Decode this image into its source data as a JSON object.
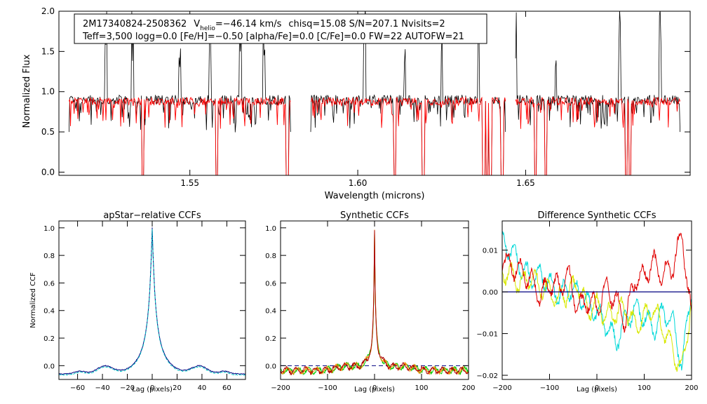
{
  "figure": {
    "info_line1": {
      "star": "2M17340824-2508362",
      "v_label": "V",
      "v_sub": "helio",
      "v_value": "=−46.14 km/s",
      "rest": "chisq=15.08  S/N=207.1  Nvisits=2"
    },
    "info_line2": "Teff=3,500 logg=0.0 [Fe/H]=−0.50 [alpha/Fe]=0.0 [C/Fe]=0.0 FW=22 AUTOFW=21"
  },
  "chart_data": [
    {
      "id": "spectrum",
      "type": "line",
      "title": "",
      "xlabel": "Wavelength (microns)",
      "ylabel": "Normalized Flux",
      "xlim": [
        1.511,
        1.699
      ],
      "ylim": [
        -0.04,
        2.0
      ],
      "xticks": [
        1.55,
        1.6,
        1.65
      ],
      "xtick_labels": [
        "1.55",
        "1.60",
        "1.65"
      ],
      "yticks": [
        0.0,
        0.5,
        1.0,
        1.5,
        2.0
      ],
      "ytick_labels": [
        "0.0",
        "0.5",
        "1.0",
        "1.5",
        "2.0"
      ],
      "chips": [
        [
          1.514,
          1.58
        ],
        [
          1.586,
          1.644
        ],
        [
          1.647,
          1.696
        ]
      ],
      "sky_lines_down": [
        1.536,
        1.558,
        1.579,
        1.611,
        1.6195,
        1.6375,
        1.6385,
        1.6395,
        1.643,
        1.653,
        1.656,
        1.68,
        1.681
      ],
      "sky_lines_up": [
        1.525,
        1.533,
        1.547,
        1.556,
        1.565,
        1.572,
        1.602,
        1.614,
        1.625,
        1.636,
        1.647,
        1.659,
        1.678,
        1.69
      ],
      "series": [
        {
          "name": "observed spectrum",
          "color": "#000000",
          "continuum": 0.9,
          "noise": 0.06
        },
        {
          "name": "best-fit synthetic",
          "color": "#ff0000",
          "continuum": 0.88,
          "noise": 0.05
        }
      ]
    },
    {
      "id": "ccf_apstar",
      "type": "line",
      "title": "apStar−relative CCFs",
      "xlabel": "Lag (pixels)",
      "ylabel": "Normalized CCF",
      "xlim": [
        -75,
        75
      ],
      "ylim": [
        -0.1,
        1.05
      ],
      "xticks": [
        -60,
        -40,
        -20,
        0,
        20,
        40,
        60
      ],
      "xtick_labels": [
        "−60",
        "−40",
        "−20",
        "0",
        "20",
        "40",
        "60"
      ],
      "yticks": [
        0.0,
        0.2,
        0.4,
        0.6,
        0.8,
        1.0
      ],
      "ytick_labels": [
        "0.0",
        "0.2",
        "0.4",
        "0.6",
        "0.8",
        "1.0"
      ],
      "peak_lag": 0,
      "peak_value": 1.0,
      "wing_value": -0.06,
      "series": [
        {
          "name": "visit 1",
          "color": "#000080"
        },
        {
          "name": "visit 2",
          "color": "#00c0c0"
        }
      ]
    },
    {
      "id": "ccf_synthetic",
      "type": "line",
      "title": "Synthetic CCFs",
      "xlabel": "Lag (pixels)",
      "ylabel": "",
      "xlim": [
        -200,
        200
      ],
      "ylim": [
        -0.1,
        1.05
      ],
      "xticks": [
        -200,
        -100,
        0,
        100,
        200
      ],
      "xtick_labels": [
        "−200",
        "−100",
        "0",
        "100",
        "200"
      ],
      "yticks": [
        0.0,
        0.2,
        0.4,
        0.6,
        0.8,
        1.0
      ],
      "ytick_labels": [
        "0.0",
        "0.2",
        "0.4",
        "0.6",
        "0.8",
        "1.0"
      ],
      "peak_lag": 0,
      "peak_value": 1.0,
      "baseline": 0.0,
      "series": [
        {
          "name": "visit 1",
          "color": "#00cc00"
        },
        {
          "name": "visit 2",
          "color": "#ff8800"
        },
        {
          "name": "combined",
          "color": "#aa0000"
        }
      ]
    },
    {
      "id": "ccf_difference",
      "type": "line",
      "title": "Difference Synthetic CCFs",
      "xlabel": "Lag (pixels)",
      "ylabel": "",
      "xlim": [
        -200,
        200
      ],
      "ylim": [
        -0.021,
        0.017
      ],
      "xticks": [
        -200,
        -100,
        0,
        100,
        200
      ],
      "xtick_labels": [
        "−200",
        "−100",
        "0",
        "100",
        "200"
      ],
      "yticks": [
        -0.02,
        -0.01,
        0.0,
        0.01
      ],
      "ytick_labels": [
        "−0.02",
        "−0.01",
        "0.00",
        "0.01"
      ],
      "zero_line": 0.0,
      "series": [
        {
          "name": "cyan",
          "color": "#00d8d8",
          "x": [
            -200,
            -180,
            -160,
            -140,
            -120,
            -100,
            -80,
            -60,
            -40,
            -20,
            0,
            20,
            40,
            60,
            80,
            100,
            120,
            140,
            160,
            180,
            200
          ],
          "y": [
            0.012,
            0.01,
            0.006,
            0.003,
            0.004,
            0.002,
            -0.001,
            0.001,
            0.0,
            -0.003,
            -0.005,
            -0.008,
            -0.012,
            -0.007,
            -0.004,
            -0.006,
            -0.009,
            -0.005,
            -0.007,
            -0.018,
            0.001
          ]
        },
        {
          "name": "yellow",
          "color": "#d8e800",
          "x": [
            -200,
            -180,
            -160,
            -140,
            -120,
            -100,
            -80,
            -60,
            -40,
            -20,
            0,
            20,
            40,
            60,
            80,
            100,
            120,
            140,
            160,
            180,
            200
          ],
          "y": [
            0.005,
            0.004,
            0.002,
            0.004,
            0.001,
            0.0,
            -0.002,
            0.0,
            0.002,
            -0.004,
            -0.003,
            -0.006,
            -0.005,
            -0.004,
            -0.008,
            -0.006,
            -0.004,
            -0.009,
            -0.014,
            -0.019,
            -0.002
          ]
        },
        {
          "name": "red",
          "color": "#e00000",
          "x": [
            -200,
            -180,
            -160,
            -140,
            -120,
            -100,
            -80,
            -60,
            -40,
            -20,
            0,
            20,
            40,
            60,
            80,
            100,
            120,
            140,
            160,
            180,
            200
          ],
          "y": [
            0.008,
            0.006,
            0.005,
            0.003,
            -0.001,
            0.002,
            0.001,
            0.004,
            -0.004,
            -0.002,
            -0.004,
            0.001,
            -0.002,
            -0.007,
            0.003,
            0.004,
            0.007,
            0.004,
            0.006,
            0.014,
            -0.007
          ]
        }
      ]
    }
  ]
}
